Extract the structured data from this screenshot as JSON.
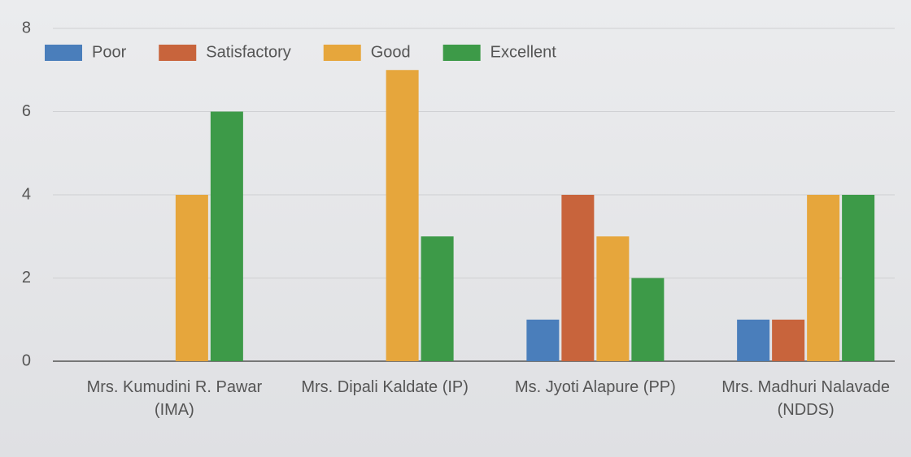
{
  "chart_data": {
    "type": "bar",
    "categories": [
      "Mrs. Kumudini R. Pawar (IMA)",
      "Mrs. Dipali Kaldate (IP)",
      "Ms. Jyoti Alapure (PP)",
      "Mrs. Madhuri Nalavade (NDDS)"
    ],
    "series": [
      {
        "name": "Poor",
        "color": "#4a7ebb",
        "values": [
          0,
          0,
          1,
          1
        ]
      },
      {
        "name": "Satisfactory",
        "color": "#c8643c",
        "values": [
          0,
          0,
          4,
          1
        ]
      },
      {
        "name": "Good",
        "color": "#e6a63c",
        "values": [
          4,
          7,
          3,
          4
        ]
      },
      {
        "name": "Excellent",
        "color": "#3d9a48",
        "values": [
          6,
          3,
          2,
          4
        ]
      }
    ],
    "ylim": [
      0,
      8
    ],
    "yticks": [
      0,
      2,
      4,
      6,
      8
    ],
    "grid": true,
    "legend": "top-left"
  }
}
